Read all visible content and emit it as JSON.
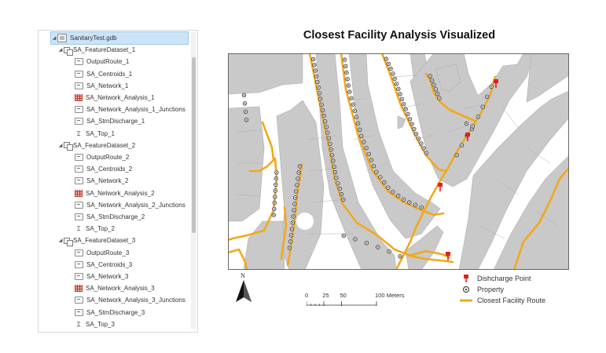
{
  "tree": {
    "root": "SanitaryTest.gdb",
    "datasets": [
      {
        "name": "SA_FeatureDataset_1",
        "items": [
          {
            "label": "OutputRoute_1",
            "icon": "feature-class-icon"
          },
          {
            "label": "SA_Centroids_1",
            "icon": "feature-class-icon"
          },
          {
            "label": "SA_Network_1",
            "icon": "feature-class-icon"
          },
          {
            "label": "SA_Network_Analysis_1",
            "icon": "network-dataset-icon"
          },
          {
            "label": "SA_Network_Analysis_1_Junctions",
            "icon": "feature-class-icon"
          },
          {
            "label": "SA_StmDischarge_1",
            "icon": "feature-class-icon"
          },
          {
            "label": "SA_Top_1",
            "icon": "topology-icon"
          }
        ]
      },
      {
        "name": "SA_FeatureDataset_2",
        "items": [
          {
            "label": "OutputRoute_2",
            "icon": "feature-class-icon"
          },
          {
            "label": "SA_Centroids_2",
            "icon": "feature-class-icon"
          },
          {
            "label": "SA_Network_2",
            "icon": "feature-class-icon"
          },
          {
            "label": "SA_Network_Analysis_2",
            "icon": "network-dataset-icon"
          },
          {
            "label": "SA_Network_Analysis_2_Junctions",
            "icon": "feature-class-icon"
          },
          {
            "label": "SA_StmDischarge_2",
            "icon": "feature-class-icon"
          },
          {
            "label": "SA_Top_2",
            "icon": "topology-icon"
          }
        ]
      },
      {
        "name": "SA_FeatureDataset_3",
        "items": [
          {
            "label": "OutputRoute_3",
            "icon": "feature-class-icon"
          },
          {
            "label": "SA_Centroids_3",
            "icon": "feature-class-icon"
          },
          {
            "label": "SA_Network_3",
            "icon": "feature-class-icon"
          },
          {
            "label": "SA_Network_Analysis_3",
            "icon": "network-dataset-icon"
          },
          {
            "label": "SA_Network_Analysis_3_Junctions",
            "icon": "feature-class-icon"
          },
          {
            "label": "SA_StmDischarge_3",
            "icon": "feature-class-icon"
          },
          {
            "label": "SA_Top_3",
            "icon": "topology-icon"
          }
        ]
      }
    ]
  },
  "map": {
    "title": "Closest Facility Analysis Visualized",
    "north_label": "N",
    "colors": {
      "parcel": "#c9c9c9",
      "parcel_line": "#b0b0b0",
      "road": "#ffffff",
      "route": "#f2a81d",
      "discharge": "#e0201b",
      "property_fill": "#e8e8e8"
    },
    "legend": [
      {
        "label": "Dishcharge Point",
        "symbol": "discharge-point-icon"
      },
      {
        "label": "Property",
        "symbol": "property-icon"
      },
      {
        "label": "Closest Facility Route",
        "symbol": "route-line-icon"
      }
    ],
    "scale": {
      "labels": [
        "0",
        "25",
        "50",
        "100 Meters"
      ],
      "values": [
        0,
        25,
        50,
        100
      ]
    }
  }
}
